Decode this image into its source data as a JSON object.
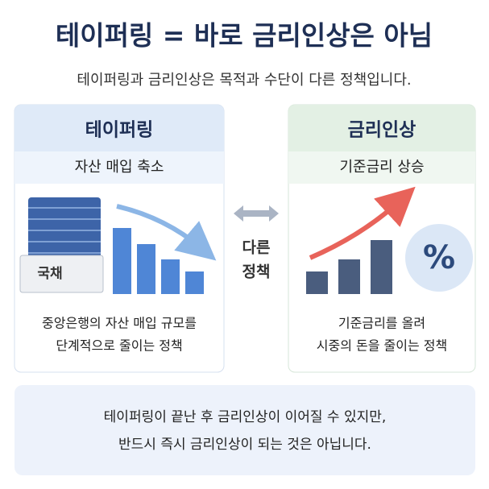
{
  "header": {
    "title": "테이퍼링 = 바로 금리인상은 아님",
    "subtitle": "테이퍼링과 금리인상은 목적과 수단이 다른 정책입니다."
  },
  "left_panel": {
    "title": "테이퍼링",
    "subtitle": "자산 매입 축소",
    "badge": "국채",
    "description": [
      "중앙은행의 자산 매입 규모를",
      "단계적으로 줄이는 정책"
    ]
  },
  "middle": {
    "label": [
      "다른",
      "정책"
    ]
  },
  "right_panel": {
    "title": "금리인상",
    "subtitle": "기준금리 상승",
    "symbol": "%",
    "description": [
      "기준금리를 올려",
      "시중의 돈을 줄이는 정책"
    ]
  },
  "footer": {
    "lines": [
      "테이퍼링이 끝난 후 금리인상이 이어질 수 있지만,",
      "반드시 즉시 금리인상이 되는 것은 아닙니다."
    ]
  }
}
